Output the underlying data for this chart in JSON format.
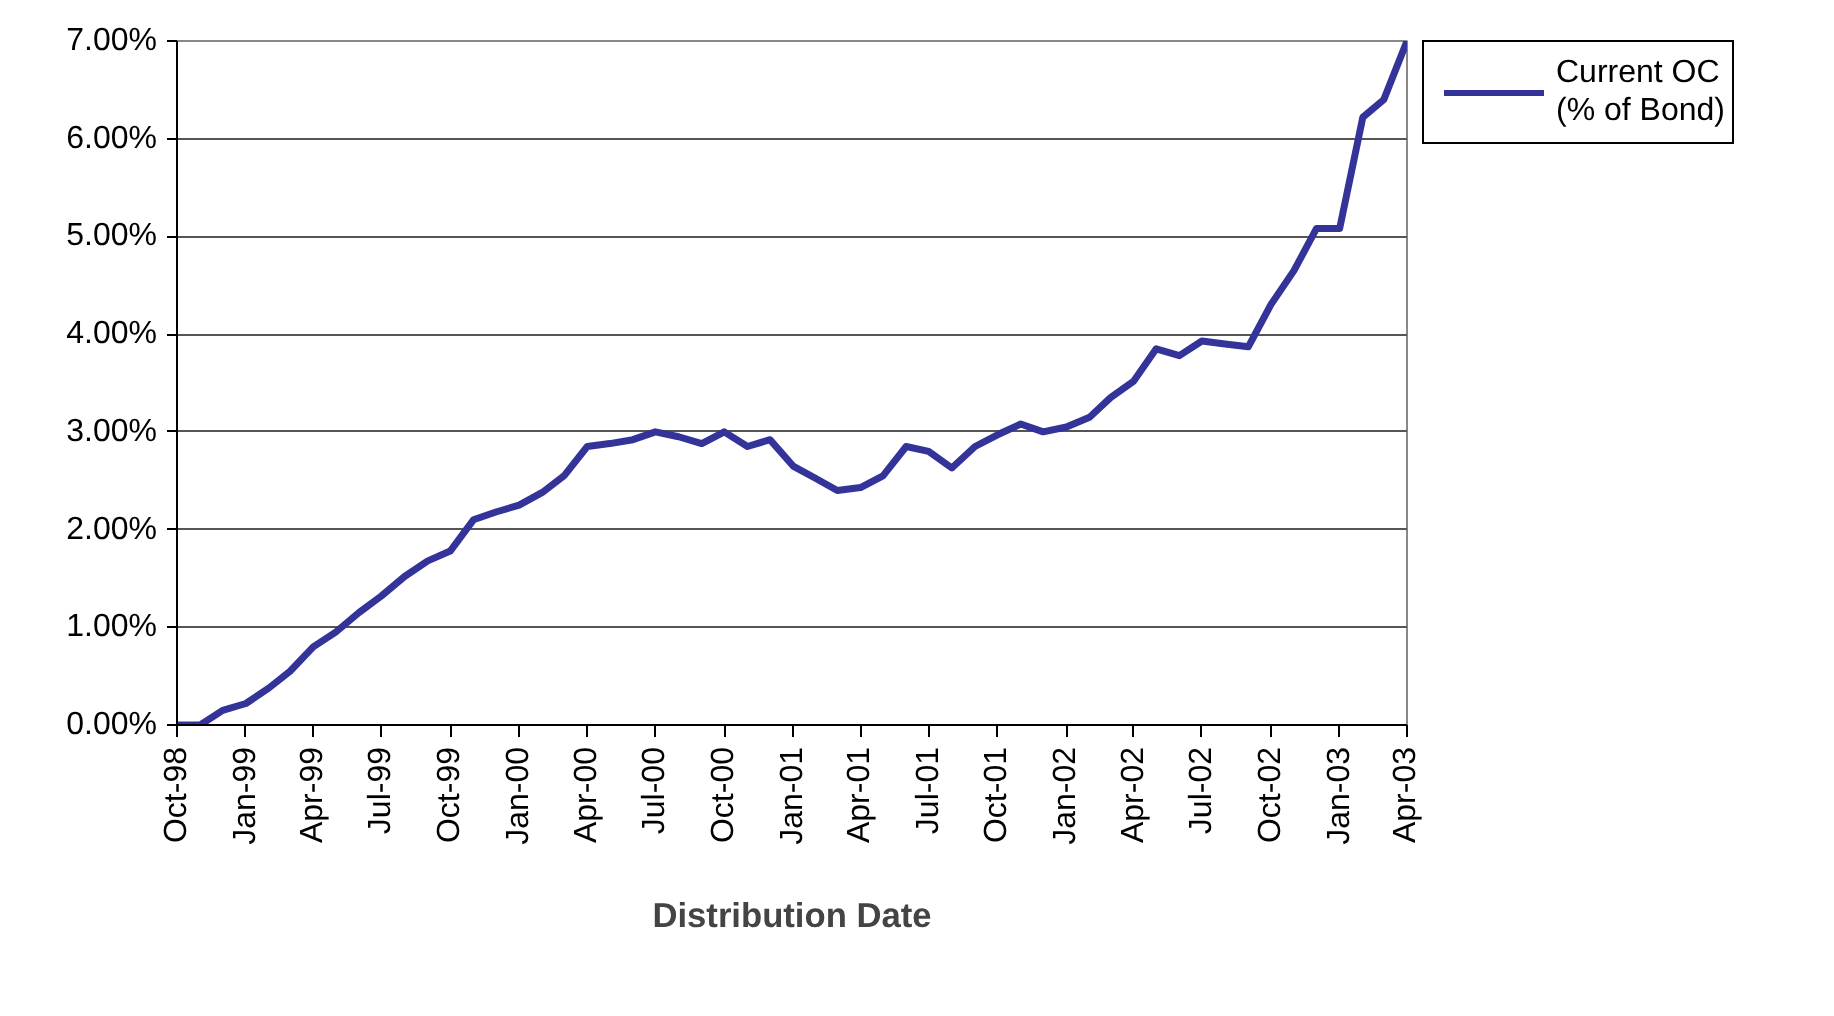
{
  "chart_data": {
    "type": "line",
    "xlabel": "Distribution Date",
    "x": [
      "1998-10",
      "1998-11",
      "1998-12",
      "1999-01",
      "1999-02",
      "1999-03",
      "1999-04",
      "1999-05",
      "1999-06",
      "1999-07",
      "1999-08",
      "1999-09",
      "1999-10",
      "1999-11",
      "1999-12",
      "2000-01",
      "2000-02",
      "2000-03",
      "2000-04",
      "2000-05",
      "2000-06",
      "2000-07",
      "2000-08",
      "2000-09",
      "2000-10",
      "2000-11",
      "2000-12",
      "2001-01",
      "2001-02",
      "2001-03",
      "2001-04",
      "2001-05",
      "2001-06",
      "2001-07",
      "2001-08",
      "2001-09",
      "2001-10",
      "2001-11",
      "2001-12",
      "2002-01",
      "2002-02",
      "2002-03",
      "2002-04",
      "2002-05",
      "2002-06",
      "2002-07",
      "2002-08",
      "2002-09",
      "2002-10",
      "2002-11",
      "2002-12",
      "2003-01",
      "2003-02",
      "2003-03",
      "2003-04"
    ],
    "series": [
      {
        "name": "Current OC\n(% of Bond)",
        "color": "#333399",
        "values": [
          0.0,
          0.0,
          0.15,
          0.22,
          0.38,
          0.55,
          0.8,
          0.95,
          1.15,
          1.32,
          1.52,
          1.68,
          1.78,
          2.1,
          2.18,
          2.25,
          2.38,
          2.55,
          2.85,
          2.88,
          2.92,
          3.0,
          2.95,
          2.88,
          3.0,
          2.85,
          2.92,
          2.65,
          2.52,
          2.4,
          2.43,
          2.55,
          2.85,
          2.8,
          2.63,
          2.85,
          2.97,
          3.08,
          3.0,
          3.05,
          3.15,
          3.35,
          3.52,
          3.85,
          3.78,
          3.93,
          3.9,
          3.87,
          4.3,
          4.65,
          5.08,
          5.08,
          6.22,
          6.4,
          7.0
        ]
      }
    ],
    "xlim": [
      "1998-10",
      "2003-04"
    ],
    "xticks": [
      {
        "value": "1998-10",
        "label": "Oct-98"
      },
      {
        "value": "1999-01",
        "label": "Jan-99"
      },
      {
        "value": "1999-04",
        "label": "Apr-99"
      },
      {
        "value": "1999-07",
        "label": "Jul-99"
      },
      {
        "value": "1999-10",
        "label": "Oct-99"
      },
      {
        "value": "2000-01",
        "label": "Jan-00"
      },
      {
        "value": "2000-04",
        "label": "Apr-00"
      },
      {
        "value": "2000-07",
        "label": "Jul-00"
      },
      {
        "value": "2000-10",
        "label": "Oct-00"
      },
      {
        "value": "2001-01",
        "label": "Jan-01"
      },
      {
        "value": "2001-04",
        "label": "Apr-01"
      },
      {
        "value": "2001-07",
        "label": "Jul-01"
      },
      {
        "value": "2001-10",
        "label": "Oct-01"
      },
      {
        "value": "2002-01",
        "label": "Jan-02"
      },
      {
        "value": "2002-04",
        "label": "Apr-02"
      },
      {
        "value": "2002-07",
        "label": "Jul-02"
      },
      {
        "value": "2002-10",
        "label": "Oct-02"
      },
      {
        "value": "2003-01",
        "label": "Jan-03"
      },
      {
        "value": "2003-04",
        "label": "Apr-03"
      }
    ],
    "ylim": [
      0,
      7
    ],
    "yticks": [
      {
        "value": 0,
        "label": "0.00%"
      },
      {
        "value": 1,
        "label": "1.00%"
      },
      {
        "value": 2,
        "label": "2.00%"
      },
      {
        "value": 3,
        "label": "3.00%"
      },
      {
        "value": 4,
        "label": "4.00%"
      },
      {
        "value": 5,
        "label": "5.00%"
      },
      {
        "value": 6,
        "label": "6.00%"
      },
      {
        "value": 7,
        "label": "7.00%"
      }
    ],
    "grid": "y",
    "legend": "right",
    "marker": "none",
    "line_style": "solid"
  }
}
